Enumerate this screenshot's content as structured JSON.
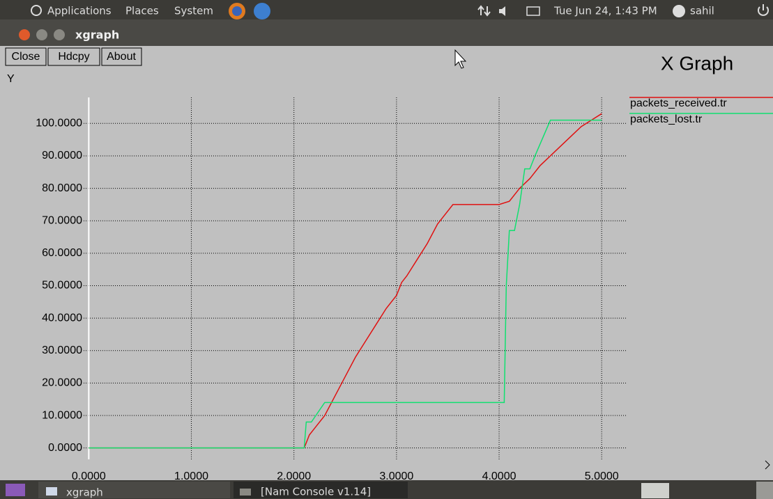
{
  "top_panel": {
    "menus": [
      "Applications",
      "Places",
      "System"
    ],
    "clock": "Tue Jun 24, 1:43 PM",
    "user": "sahil"
  },
  "window": {
    "title": "xgraph",
    "buttons": [
      "Close",
      "Hdcpy",
      "About"
    ]
  },
  "taskbar": {
    "items": [
      "xgraph",
      "[Nam Console v1.14]"
    ]
  },
  "chart_data": {
    "type": "line",
    "title": "X Graph",
    "y_label": "Y",
    "xlim": [
      -0.05,
      5.25
    ],
    "ylim": [
      -3.5,
      108
    ],
    "xticks": [
      {
        "value": 0,
        "label": "0.0000"
      },
      {
        "value": 1,
        "label": "1.0000"
      },
      {
        "value": 2,
        "label": "2.0000"
      },
      {
        "value": 3,
        "label": "3.0000"
      },
      {
        "value": 4,
        "label": "4.0000"
      },
      {
        "value": 5,
        "label": "5.0000"
      }
    ],
    "yticks": [
      {
        "value": 0,
        "label": "0.0000"
      },
      {
        "value": 10,
        "label": "10.0000"
      },
      {
        "value": 20,
        "label": "20.0000"
      },
      {
        "value": 30,
        "label": "30.0000"
      },
      {
        "value": 40,
        "label": "40.0000"
      },
      {
        "value": 50,
        "label": "50.0000"
      },
      {
        "value": 60,
        "label": "60.0000"
      },
      {
        "value": 70,
        "label": "70.0000"
      },
      {
        "value": 80,
        "label": "80.0000"
      },
      {
        "value": 90,
        "label": "90.0000"
      },
      {
        "value": 100,
        "label": "100.0000"
      }
    ],
    "grid": true,
    "series": [
      {
        "name": "packets_received.tr",
        "color": "#e01010",
        "x": [
          0,
          2.07,
          2.1,
          2.15,
          2.2,
          2.3,
          2.4,
          2.5,
          2.6,
          2.7,
          2.8,
          2.9,
          3.0,
          3.05,
          3.1,
          3.2,
          3.3,
          3.4,
          3.55,
          4.0,
          4.1,
          4.2,
          4.3,
          4.4,
          4.5,
          4.6,
          4.7,
          4.8,
          4.9,
          5.0
        ],
        "values": [
          0,
          0,
          0,
          4,
          6,
          10,
          16,
          22,
          28,
          33,
          38,
          43,
          47,
          51,
          53,
          58,
          63,
          69,
          75,
          75,
          76,
          80,
          83,
          87,
          90,
          93,
          96,
          99,
          101,
          103
        ]
      },
      {
        "name": "packets_lost.tr",
        "color": "#10e070",
        "x": [
          0,
          2.1,
          2.12,
          2.17,
          2.3,
          4.05,
          4.07,
          4.1,
          4.15,
          4.2,
          4.25,
          4.3,
          4.35,
          4.5,
          5.0
        ],
        "values": [
          0,
          0,
          8,
          8,
          14,
          14,
          50,
          67,
          67,
          75,
          86,
          86,
          90,
          101,
          101
        ]
      }
    ]
  }
}
